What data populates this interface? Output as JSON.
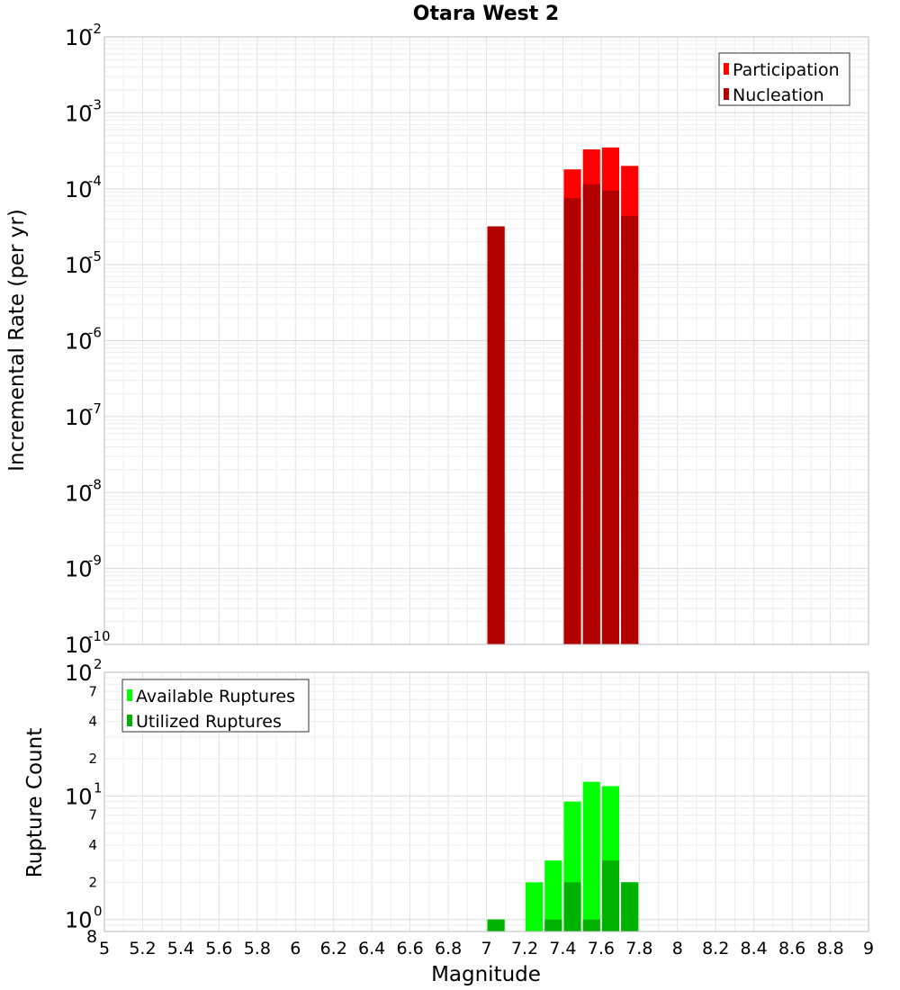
{
  "chart_data": [
    {
      "type": "bar",
      "title": "Otara West 2",
      "xlabel": "Magnitude",
      "ylabel": "Incremental Rate (per yr)",
      "yscale": "log",
      "xlim": [
        5,
        9
      ],
      "ylim": [
        1e-10,
        0.01
      ],
      "bar_width": 0.09,
      "x_ticks": [
        "5",
        "5.2",
        "5.4",
        "5.6",
        "5.8",
        "6",
        "6.2",
        "6.4",
        "6.6",
        "6.8",
        "7",
        "7.2",
        "7.4",
        "7.6",
        "7.8",
        "8",
        "8.2",
        "8.4",
        "8.6",
        "8.8",
        "9"
      ],
      "y_ticks": [
        {
          "value": 1e-10,
          "base": "10",
          "exp": "-10"
        },
        {
          "value": 1e-09,
          "base": "10",
          "exp": "-9"
        },
        {
          "value": 1e-08,
          "base": "10",
          "exp": "-8"
        },
        {
          "value": 1e-07,
          "base": "10",
          "exp": "-7"
        },
        {
          "value": 1e-06,
          "base": "10",
          "exp": "-6"
        },
        {
          "value": 1e-05,
          "base": "10",
          "exp": "-5"
        },
        {
          "value": 0.0001,
          "base": "10",
          "exp": "-4"
        },
        {
          "value": 0.001,
          "base": "10",
          "exp": "-3"
        },
        {
          "value": 0.01,
          "base": "10",
          "exp": "-2"
        }
      ],
      "legend": {
        "position": "top-right"
      },
      "series": [
        {
          "name": "Participation",
          "color": "#ff0000",
          "x": [
            7.05,
            7.45,
            7.55,
            7.65,
            7.75
          ],
          "values": [
            3.2e-05,
            0.00018,
            0.00033,
            0.00035,
            0.0002
          ]
        },
        {
          "name": "Nucleation",
          "color": "#b20000",
          "x": [
            7.05,
            7.45,
            7.55,
            7.65,
            7.75
          ],
          "values": [
            3.2e-05,
            7.5e-05,
            0.000115,
            9.5e-05,
            4.4e-05
          ]
        }
      ]
    },
    {
      "type": "bar",
      "xlabel": "Magnitude",
      "ylabel": "Rupture Count",
      "yscale": "log",
      "xlim": [
        5,
        9
      ],
      "ylim": [
        0.8,
        100
      ],
      "bar_width": 0.09,
      "y_major_ticks": [
        {
          "value": 1,
          "base": "10",
          "exp": "0"
        },
        {
          "value": 10,
          "base": "10",
          "exp": "1"
        },
        {
          "value": 100,
          "base": "10",
          "exp": "2"
        }
      ],
      "y_minor_labels": [
        {
          "value": 0.8,
          "label": "8"
        },
        {
          "value": 2,
          "label": "2"
        },
        {
          "value": 4,
          "label": "4"
        },
        {
          "value": 7,
          "label": "7"
        },
        {
          "value": 20,
          "label": "2"
        },
        {
          "value": 40,
          "label": "4"
        },
        {
          "value": 70,
          "label": "7"
        }
      ],
      "legend": {
        "position": "top-left"
      },
      "series": [
        {
          "name": "Available Ruptures",
          "color": "#00ff00",
          "x": [
            7.05,
            7.25,
            7.35,
            7.45,
            7.55,
            7.65,
            7.75
          ],
          "values": [
            1,
            2,
            3,
            9,
            13,
            12,
            2
          ]
        },
        {
          "name": "Utilized Ruptures",
          "color": "#00b200",
          "x": [
            7.05,
            7.25,
            7.35,
            7.45,
            7.55,
            7.65,
            7.75
          ],
          "values": [
            1,
            0,
            1,
            2,
            1,
            3,
            2
          ]
        }
      ]
    }
  ]
}
